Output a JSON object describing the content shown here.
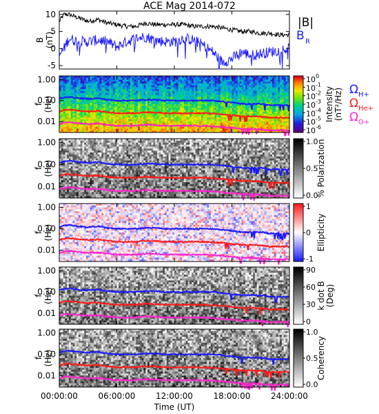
{
  "title": "ACE Mag 2014-072",
  "x_axis": {
    "label": "Time (UT)",
    "ticks": [
      "00:00:00",
      "06:00:00",
      "12:00:00",
      "18:00:00",
      "24:00:00"
    ],
    "range_hours": [
      0,
      24
    ]
  },
  "top_legend": [
    {
      "text": "|B|",
      "color": "#000000"
    },
    {
      "text": "B",
      "sub": "R",
      "color": "#1a1aff"
    }
  ],
  "freq_legend": [
    {
      "text": "Ω",
      "sub": "H+",
      "color": "#1a1aff"
    },
    {
      "text": "Ω",
      "sub": "He+",
      "color": "#ff1a1a"
    },
    {
      "text": "Ω",
      "sub": "O+",
      "color": "#ff22cc"
    }
  ],
  "panels": [
    {
      "kind": "line",
      "ylabel": "B",
      "yunit": "(nT)",
      "ylim": [
        -6,
        11
      ],
      "yticks": [
        "10",
        "5",
        "0",
        "-5"
      ]
    },
    {
      "kind": "spectrogram",
      "ylabel": "f",
      "yunit": "(Hz)",
      "yticks": [
        "1.00",
        "0.10",
        "0.01"
      ],
      "colormap": "rainbow",
      "cbar_label": [
        "Intensity",
        "(nT²/Hz)"
      ],
      "cbar_ticks": [
        {
          "base": "10",
          "exp": "0"
        },
        {
          "base": "10",
          "exp": "-1"
        },
        {
          "base": "10",
          "exp": "-2"
        },
        {
          "base": "10",
          "exp": "-3"
        },
        {
          "base": "10",
          "exp": "-4"
        },
        {
          "base": "10",
          "exp": "-5"
        },
        {
          "base": "10",
          "exp": "-6"
        }
      ]
    },
    {
      "kind": "spectrogram",
      "ylabel": "f",
      "yunit": "(Hz)",
      "yticks": [
        "1.00",
        "0.10",
        "0.01"
      ],
      "colormap": "gray",
      "cbar_label": [
        "% Polarization"
      ],
      "cbar_ticks": [
        "1.0",
        "0.5",
        "0.0"
      ]
    },
    {
      "kind": "spectrogram",
      "ylabel": "f",
      "yunit": "(Hz)",
      "yticks": [
        "1.00",
        "0.10",
        "0.01"
      ],
      "colormap": "bwr",
      "cbar_label": [
        "Ellipticity"
      ],
      "cbar_ticks": [
        "1",
        "0",
        "-1"
      ]
    },
    {
      "kind": "spectrogram",
      "ylabel": "f",
      "yunit": "(Hz)",
      "yticks": [
        "1.00",
        "0.10",
        "0.01"
      ],
      "colormap": "gray",
      "cbar_label": [
        "k dot B",
        "(Deg)"
      ],
      "cbar_ticks": [
        "90",
        "60",
        "30",
        "0"
      ]
    },
    {
      "kind": "spectrogram",
      "ylabel": "f",
      "yunit": "(Hz)",
      "yticks": [
        "1.00",
        "0.10",
        "0.01"
      ],
      "colormap": "gray",
      "cbar_label": [
        "Coherency"
      ],
      "cbar_ticks": [
        "1.0",
        "0.5",
        "0.0"
      ]
    }
  ],
  "chart_data": {
    "type": "line",
    "title": "ACE Mag 2014-072",
    "xlabel": "Time (UT)",
    "x_hours": [
      0,
      0.5,
      1,
      1.5,
      2,
      3,
      4,
      5,
      6,
      7,
      8,
      9,
      10,
      11,
      12,
      13,
      14,
      15,
      16,
      17,
      18,
      19,
      20,
      21,
      22,
      23,
      24
    ],
    "series": [
      {
        "name": "|B|",
        "color": "#000000",
        "values": [
          8,
          10,
          10,
          9.5,
          9,
          8,
          8.5,
          7.5,
          7,
          6.5,
          6.5,
          7.5,
          7,
          7,
          7,
          7,
          6.5,
          6.5,
          6.5,
          6,
          5.5,
          5,
          5,
          4.5,
          4.5,
          4,
          4
        ]
      },
      {
        "name": "B_R",
        "color": "#1a1aff",
        "values": [
          -2,
          0,
          3,
          2.5,
          2,
          2,
          2.5,
          2,
          0.5,
          2,
          3,
          3.5,
          2.5,
          2,
          2,
          3,
          2.5,
          1,
          -1,
          -4,
          -3,
          -1,
          -2,
          -1.5,
          -1,
          -0.5,
          0
        ]
      },
      {
        "name": "Ω_H+ (Hz)",
        "color": "#1a1aff",
        "values": [
          0.12,
          0.14,
          0.15,
          0.14,
          0.13,
          0.12,
          0.13,
          0.11,
          0.1,
          0.1,
          0.1,
          0.11,
          0.11,
          0.1,
          0.1,
          0.1,
          0.1,
          0.1,
          0.1,
          0.09,
          0.08,
          0.07,
          0.07,
          0.07,
          0.06,
          0.06,
          0.06
        ]
      },
      {
        "name": "Ω_He+ (Hz)",
        "color": "#ff1a1a",
        "values": [
          0.03,
          0.035,
          0.037,
          0.035,
          0.033,
          0.03,
          0.032,
          0.028,
          0.025,
          0.025,
          0.025,
          0.028,
          0.027,
          0.025,
          0.025,
          0.025,
          0.025,
          0.025,
          0.024,
          0.022,
          0.02,
          0.018,
          0.018,
          0.017,
          0.015,
          0.015,
          0.015
        ]
      },
      {
        "name": "Ω_O+ (Hz)",
        "color": "#ff22cc",
        "values": [
          0.0075,
          0.0088,
          0.0093,
          0.0088,
          0.0083,
          0.0075,
          0.008,
          0.007,
          0.0063,
          0.0063,
          0.0063,
          0.007,
          0.0068,
          0.0063,
          0.0063,
          0.0063,
          0.0063,
          0.0063,
          0.006,
          0.0055,
          0.005,
          0.0045,
          0.0045,
          0.0043,
          0.0038,
          0.0038,
          0.0038
        ]
      }
    ],
    "freq_range_hz": [
      0.003,
      1.5
    ],
    "log_frequency": true
  }
}
